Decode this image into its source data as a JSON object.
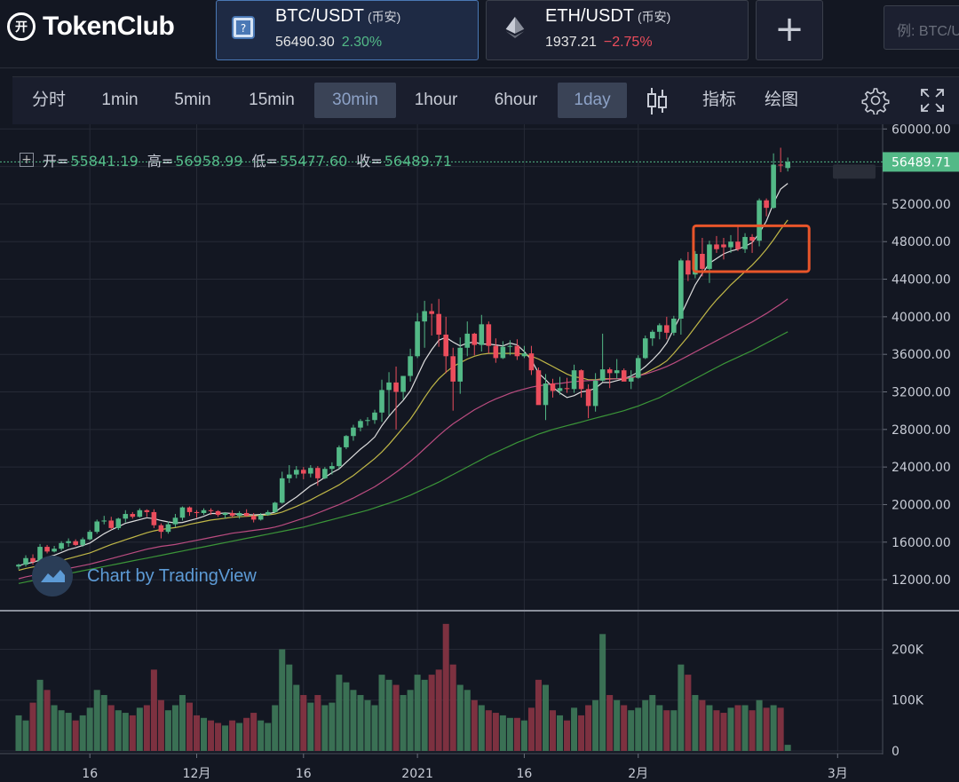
{
  "app": {
    "logo_mark": "开",
    "logo_text": "TokenClub"
  },
  "tickers": [
    {
      "pair": "BTC/USDT",
      "exchange": "(币安)",
      "price": "56490.30",
      "change": "2.30%",
      "direction": "up",
      "icon": "btc-icon"
    },
    {
      "pair": "ETH/USDT",
      "exchange": "(币安)",
      "price": "1937.21",
      "change": "−2.75%",
      "direction": "down",
      "icon": "eth-icon"
    }
  ],
  "add_label": "+",
  "search": {
    "placeholder": "例: BTC/U"
  },
  "toolbar": {
    "timeframes": [
      "分时",
      "1min",
      "5min",
      "15min",
      "30min",
      "1hour",
      "6hour",
      "1day"
    ],
    "selected": [
      "30min",
      "1day"
    ],
    "indicators_label": "指标",
    "draw_label": "绘图"
  },
  "ohlc": {
    "open_label": "开=",
    "open": "55841.19",
    "high_label": "高=",
    "high": "56958.99",
    "low_label": "低=",
    "low": "55477.60",
    "close_label": "收=",
    "close": "56489.71"
  },
  "watermark": "Chart by TradingView",
  "chart_data": {
    "type": "candlestick",
    "price_axis_ticks": [
      "60000.00",
      "56000.00",
      "52000.00",
      "48000.00",
      "44000.00",
      "40000.00",
      "36000.00",
      "32000.00",
      "28000.00",
      "24000.00",
      "20000.00",
      "16000.00",
      "12000.00"
    ],
    "price_range": [
      8700,
      60500
    ],
    "last_price_label": "56489.71",
    "volume_axis_ticks": [
      "200K",
      "100K",
      "0"
    ],
    "volume_range": [
      0,
      255000
    ],
    "x_axis_labels": [
      {
        "label": "16",
        "index": 10
      },
      {
        "label": "12月",
        "index": 25
      },
      {
        "label": "16",
        "index": 40
      },
      {
        "label": "2021",
        "index": 56
      },
      {
        "label": "16",
        "index": 71
      },
      {
        "label": "2月",
        "index": 87
      },
      {
        "label": "3月",
        "index": 115
      }
    ],
    "candles": [
      [
        13400,
        13700,
        13100,
        13600,
        70000
      ],
      [
        13600,
        14600,
        13400,
        14300,
        60000
      ],
      [
        14300,
        14700,
        13600,
        13900,
        95000
      ],
      [
        13900,
        15800,
        13700,
        15500,
        140000
      ],
      [
        15500,
        15700,
        14800,
        15000,
        120000
      ],
      [
        15000,
        15600,
        14900,
        15300,
        90000
      ],
      [
        15300,
        16100,
        15100,
        15900,
        80000
      ],
      [
        15900,
        16400,
        15500,
        16100,
        75000
      ],
      [
        16100,
        16300,
        15600,
        15700,
        60000
      ],
      [
        15700,
        16500,
        15500,
        16300,
        70000
      ],
      [
        16300,
        17300,
        16200,
        17100,
        85000
      ],
      [
        17100,
        18400,
        16900,
        18200,
        120000
      ],
      [
        18200,
        18800,
        17900,
        18300,
        110000
      ],
      [
        18300,
        18700,
        17300,
        17500,
        90000
      ],
      [
        17500,
        18600,
        17300,
        18500,
        80000
      ],
      [
        18500,
        19400,
        18100,
        19000,
        75000
      ],
      [
        19000,
        19200,
        18500,
        18700,
        70000
      ],
      [
        18700,
        19600,
        18600,
        19400,
        85000
      ],
      [
        19400,
        19500,
        18700,
        19200,
        90000
      ],
      [
        19200,
        19500,
        17500,
        17800,
        160000
      ],
      [
        17800,
        18000,
        16400,
        17100,
        100000
      ],
      [
        17100,
        18200,
        16900,
        17900,
        80000
      ],
      [
        17900,
        19000,
        17600,
        18600,
        90000
      ],
      [
        18600,
        19800,
        18300,
        19700,
        110000
      ],
      [
        19700,
        19800,
        18800,
        19200,
        95000
      ],
      [
        19200,
        19400,
        18600,
        19100,
        70000
      ],
      [
        19100,
        19600,
        18900,
        19400,
        65000
      ],
      [
        19400,
        19600,
        18900,
        19300,
        60000
      ],
      [
        19300,
        19400,
        18700,
        18900,
        55000
      ],
      [
        18900,
        19200,
        18500,
        19100,
        50000
      ],
      [
        19100,
        19400,
        18600,
        18800,
        60000
      ],
      [
        18800,
        19300,
        18500,
        19100,
        55000
      ],
      [
        19100,
        19500,
        18700,
        18800,
        65000
      ],
      [
        18800,
        19100,
        18100,
        18400,
        75000
      ],
      [
        18400,
        19100,
        18300,
        18900,
        60000
      ],
      [
        18900,
        19400,
        18800,
        19200,
        55000
      ],
      [
        19200,
        20300,
        19100,
        20200,
        90000
      ],
      [
        20200,
        23500,
        20100,
        22800,
        200000
      ],
      [
        22800,
        24200,
        22300,
        23200,
        170000
      ],
      [
        23200,
        24100,
        22800,
        23700,
        130000
      ],
      [
        23700,
        24000,
        22700,
        23300,
        110000
      ],
      [
        23300,
        24200,
        22900,
        23900,
        95000
      ],
      [
        23900,
        24100,
        22000,
        22800,
        110000
      ],
      [
        22800,
        24000,
        22700,
        23800,
        90000
      ],
      [
        23800,
        24500,
        23200,
        24100,
        95000
      ],
      [
        24100,
        26300,
        23800,
        26100,
        150000
      ],
      [
        26100,
        27400,
        25900,
        27300,
        135000
      ],
      [
        27300,
        28500,
        26800,
        28200,
        120000
      ],
      [
        28200,
        29100,
        27800,
        28900,
        110000
      ],
      [
        28900,
        29300,
        28400,
        29000,
        100000
      ],
      [
        29000,
        30100,
        28600,
        29800,
        90000
      ],
      [
        29800,
        33300,
        28800,
        32200,
        150000
      ],
      [
        32200,
        34100,
        29500,
        33000,
        140000
      ],
      [
        33000,
        34700,
        28000,
        32000,
        130000
      ],
      [
        32000,
        33700,
        31200,
        33700,
        110000
      ],
      [
        33700,
        36600,
        33100,
        35800,
        120000
      ],
      [
        35800,
        40400,
        35600,
        39500,
        150000
      ],
      [
        39500,
        41700,
        36700,
        40600,
        140000
      ],
      [
        40600,
        41400,
        38000,
        40300,
        150000
      ],
      [
        40300,
        41900,
        36800,
        38100,
        160000
      ],
      [
        38100,
        40000,
        34000,
        35800,
        250000
      ],
      [
        35800,
        36700,
        30000,
        33100,
        170000
      ],
      [
        33100,
        37800,
        31800,
        36700,
        130000
      ],
      [
        36700,
        39500,
        35800,
        38200,
        120000
      ],
      [
        38200,
        38300,
        35900,
        37000,
        100000
      ],
      [
        37000,
        40200,
        36300,
        39200,
        90000
      ],
      [
        39200,
        39500,
        36100,
        36900,
        80000
      ],
      [
        36900,
        37700,
        35100,
        35600,
        75000
      ],
      [
        35600,
        37400,
        35500,
        36800,
        70000
      ],
      [
        36800,
        37500,
        35900,
        36900,
        65000
      ],
      [
        36900,
        37600,
        35400,
        35800,
        65000
      ],
      [
        35800,
        36900,
        35600,
        36100,
        60000
      ],
      [
        36100,
        36900,
        33800,
        34300,
        85000
      ],
      [
        34300,
        34600,
        30900,
        30600,
        140000
      ],
      [
        30600,
        33900,
        29000,
        32900,
        130000
      ],
      [
        32900,
        33400,
        31400,
        32100,
        80000
      ],
      [
        32100,
        33600,
        31700,
        32400,
        70000
      ],
      [
        32400,
        33500,
        31900,
        32300,
        60000
      ],
      [
        32300,
        34900,
        31900,
        34300,
        85000
      ],
      [
        34300,
        34400,
        31400,
        32300,
        70000
      ],
      [
        32300,
        32800,
        29200,
        30500,
        90000
      ],
      [
        30500,
        34000,
        29900,
        33200,
        100000
      ],
      [
        33200,
        38200,
        33100,
        34400,
        230000
      ],
      [
        34400,
        34600,
        32400,
        34000,
        110000
      ],
      [
        34000,
        35500,
        33400,
        34300,
        100000
      ],
      [
        34300,
        34500,
        33300,
        33100,
        90000
      ],
      [
        33100,
        34300,
        32300,
        33500,
        80000
      ],
      [
        33500,
        35900,
        33400,
        35600,
        85000
      ],
      [
        35600,
        38000,
        35500,
        37700,
        100000
      ],
      [
        37700,
        38600,
        36900,
        38400,
        110000
      ],
      [
        38400,
        39300,
        37600,
        39100,
        90000
      ],
      [
        39100,
        40000,
        37600,
        38300,
        80000
      ],
      [
        38300,
        40100,
        38000,
        39800,
        80000
      ],
      [
        39800,
        46200,
        38100,
        46000,
        170000
      ],
      [
        46000,
        46900,
        43800,
        44500,
        150000
      ],
      [
        44500,
        47000,
        44100,
        46700,
        110000
      ],
      [
        46700,
        48400,
        44300,
        45100,
        100000
      ],
      [
        45100,
        48100,
        43600,
        47700,
        90000
      ],
      [
        47700,
        48600,
        46800,
        47200,
        80000
      ],
      [
        47700,
        48400,
        46100,
        47400,
        75000
      ],
      [
        47400,
        48700,
        46800,
        48000,
        85000
      ],
      [
        48000,
        49600,
        47000,
        47200,
        90000
      ],
      [
        47200,
        48900,
        46800,
        48500,
        90000
      ],
      [
        48500,
        48800,
        46800,
        48100,
        80000
      ],
      [
        48100,
        52600,
        47500,
        52400,
        100000
      ],
      [
        52400,
        52600,
        50700,
        51600,
        85000
      ],
      [
        51600,
        57400,
        51500,
        56200,
        90000
      ],
      [
        56200,
        58000,
        55400,
        56100,
        85000
      ],
      [
        55841,
        56959,
        55478,
        56490,
        12000
      ]
    ],
    "ma_lines": [
      {
        "color": "#e8e8e8",
        "values": [
          13500,
          13700,
          13850,
          14100,
          14400,
          14600,
          14900,
          15200,
          15400,
          15650,
          15900,
          16400,
          16900,
          17300,
          17650,
          18000,
          18200,
          18400,
          18600,
          18500,
          18300,
          18150,
          18050,
          18100,
          18300,
          18500,
          18750,
          19050,
          19050,
          19100,
          19050,
          18950,
          18950,
          18900,
          18950,
          19000,
          19200,
          19750,
          20300,
          20800,
          21400,
          22000,
          22400,
          22900,
          23400,
          23800,
          24500,
          25200,
          25900,
          26500,
          27200,
          28400,
          29400,
          30300,
          31100,
          32100,
          33700,
          35300,
          36500,
          37500,
          37800,
          37300,
          36900,
          37200,
          37300,
          37100,
          37100,
          37000,
          36900,
          37200,
          37000,
          36300,
          35400,
          34000,
          33300,
          32500,
          31900,
          31400,
          31600,
          32000,
          32100,
          32400,
          33000,
          33000,
          33200,
          33400,
          33700,
          34100,
          34700,
          35400,
          36200,
          37200,
          38700,
          40200,
          41800,
          43400,
          44600,
          45700,
          46200,
          46700,
          47000,
          47200,
          47500,
          47900,
          48900,
          50200,
          52100,
          53600,
          54200
        ]
      },
      {
        "color": "#c9c04a",
        "values": [
          13000,
          13200,
          13350,
          13500,
          13700,
          13850,
          14050,
          14250,
          14450,
          14650,
          14850,
          15150,
          15450,
          15750,
          16000,
          16250,
          16500,
          16750,
          17000,
          17200,
          17350,
          17450,
          17550,
          17700,
          17900,
          18050,
          18200,
          18350,
          18450,
          18550,
          18650,
          18700,
          18750,
          18800,
          18850,
          18900,
          19000,
          19200,
          19500,
          19800,
          20150,
          20500,
          20900,
          21300,
          21700,
          22100,
          22600,
          23100,
          23700,
          24300,
          24900,
          25600,
          26400,
          27300,
          28200,
          29100,
          30200,
          31400,
          32500,
          33400,
          34100,
          34700,
          35100,
          35500,
          35800,
          36000,
          36100,
          36100,
          36100,
          36100,
          36100,
          36000,
          35800,
          35500,
          35100,
          34700,
          34300,
          33900,
          33600,
          33500,
          33300,
          33300,
          33400,
          33400,
          33400,
          33400,
          33500,
          33700,
          34000,
          34400,
          34800,
          35300,
          36100,
          37000,
          37900,
          38900,
          39900,
          40900,
          41800,
          42600,
          43400,
          44100,
          44800,
          45500,
          46300,
          47200,
          48200,
          49300,
          50300
        ]
      },
      {
        "color": "#c44f86",
        "values": [
          12100,
          12300,
          12450,
          12600,
          12750,
          12900,
          13050,
          13200,
          13350,
          13500,
          13650,
          13850,
          14050,
          14250,
          14450,
          14650,
          14850,
          15050,
          15250,
          15400,
          15550,
          15650,
          15750,
          15900,
          16050,
          16200,
          16350,
          16500,
          16650,
          16800,
          16950,
          17050,
          17150,
          17250,
          17350,
          17450,
          17600,
          17800,
          18050,
          18300,
          18550,
          18800,
          19100,
          19400,
          19700,
          20000,
          20350,
          20700,
          21100,
          21500,
          21900,
          22400,
          22900,
          23450,
          24000,
          24600,
          25250,
          25950,
          26650,
          27350,
          28000,
          28600,
          29100,
          29600,
          30100,
          30500,
          30900,
          31250,
          31550,
          31850,
          32100,
          32300,
          32500,
          32650,
          32750,
          32850,
          32900,
          33000,
          33100,
          33150,
          33200,
          33250,
          33300,
          33350,
          33400,
          33450,
          33550,
          33700,
          33900,
          34150,
          34400,
          34700,
          35050,
          35450,
          35850,
          36250,
          36650,
          37050,
          37450,
          37850,
          38250,
          38650,
          39050,
          39450,
          39900,
          40350,
          40850,
          41350,
          41900
        ]
      },
      {
        "color": "#3d9c3a",
        "values": [
          11600,
          11750,
          11900,
          12050,
          12200,
          12350,
          12500,
          12650,
          12800,
          12950,
          13100,
          13250,
          13400,
          13550,
          13700,
          13850,
          14000,
          14150,
          14300,
          14450,
          14600,
          14750,
          14900,
          15050,
          15200,
          15350,
          15500,
          15650,
          15800,
          15950,
          16100,
          16250,
          16400,
          16550,
          16700,
          16850,
          17000,
          17150,
          17300,
          17450,
          17600,
          17800,
          18000,
          18200,
          18400,
          18600,
          18800,
          19000,
          19200,
          19400,
          19650,
          19900,
          20150,
          20400,
          20700,
          21000,
          21350,
          21700,
          22050,
          22400,
          22800,
          23200,
          23600,
          24000,
          24400,
          24800,
          25200,
          25550,
          25900,
          26250,
          26600,
          26900,
          27200,
          27500,
          27750,
          28000,
          28200,
          28400,
          28600,
          28800,
          29000,
          29200,
          29400,
          29600,
          29800,
          30000,
          30250,
          30500,
          30800,
          31100,
          31400,
          31800,
          32200,
          32600,
          33000,
          33400,
          33800,
          34200,
          34600,
          35000,
          35350,
          35700,
          36050,
          36400,
          36800,
          37200,
          37600,
          38000,
          38400
        ]
      }
    ],
    "highlight_box": {
      "from_index": 96,
      "to_index": 110,
      "price_low": 45000,
      "price_high": 49500,
      "color": "#e8552a"
    }
  },
  "colors": {
    "up": "#53b987",
    "down": "#eb4d5c",
    "bg": "#131722",
    "grid": "#262a36"
  }
}
